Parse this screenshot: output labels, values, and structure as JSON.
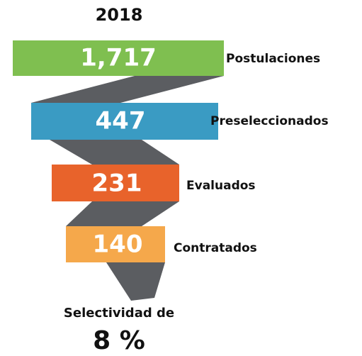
{
  "title": "2018",
  "stages": [
    {
      "value": "1,717",
      "label": "Postulaciones"
    },
    {
      "value": "447",
      "label": "Preseleccionados"
    },
    {
      "value": "231",
      "label": "Evaluados"
    },
    {
      "value": "140",
      "label": "Contratados"
    }
  ],
  "footer": {
    "caption": "Selectividad de",
    "value": "8 %"
  }
}
